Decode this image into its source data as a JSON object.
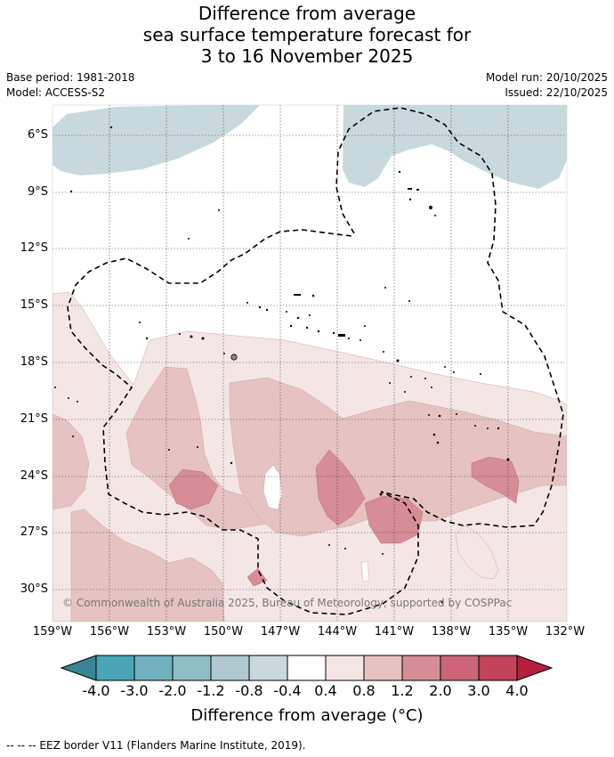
{
  "title": {
    "line1": "Difference from average",
    "line2": "sea surface temperature forecast for",
    "line3": "3 to 16 November 2025"
  },
  "meta": {
    "base_period": "Base period: 1981-2018",
    "model": "Model: ACCESS-S2",
    "model_run": "Model run: 20/10/2025",
    "issued": "Issued: 22/10/2025"
  },
  "map": {
    "lat_labels": [
      "6°S",
      "9°S",
      "12°S",
      "15°S",
      "18°S",
      "21°S",
      "24°S",
      "27°S",
      "30°S"
    ],
    "lon_labels": [
      "159°W",
      "156°W",
      "153°W",
      "150°W",
      "147°W",
      "144°W",
      "141°W",
      "138°W",
      "135°W",
      "132°W"
    ],
    "copyright": "© Commonwealth of Australia 2025, Bureau of Meteorology, supported by COSPPac"
  },
  "colorbar": {
    "labels": [
      "-4.0",
      "-3.0",
      "-2.0",
      "-1.2",
      "-0.8",
      "-0.4",
      "0.4",
      "0.8",
      "1.2",
      "2.0",
      "3.0",
      "4.0"
    ],
    "colors": [
      "#3a8593",
      "#4aa6b6",
      "#70b0bf",
      "#8fbdc8",
      "#afc9d0",
      "#c7d9dd",
      "#ffffff",
      "#f5e6e6",
      "#e6c3c2",
      "#d68d95",
      "#cc6676",
      "#c14458",
      "#b41f3e"
    ],
    "title": "Difference from average (°C)"
  },
  "footer": "--  --  -- EEZ border V11 (Flanders Marine Institute, 2019)."
}
